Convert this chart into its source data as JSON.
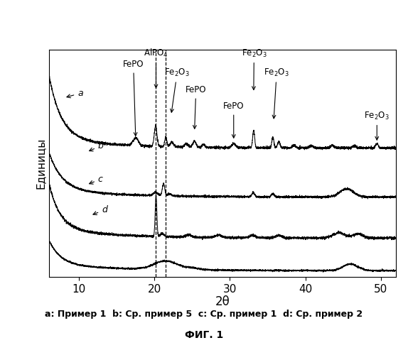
{
  "xlabel": "2θ",
  "ylabel": "Единицы",
  "xlim": [
    6,
    52
  ],
  "caption": "a: Пример 1  b: Ср. пример 5  c: Ср. пример 1  d: Ср. пример 2",
  "fig_title": "ФИГ. 1",
  "dashed_lines": [
    20.2,
    21.5
  ]
}
